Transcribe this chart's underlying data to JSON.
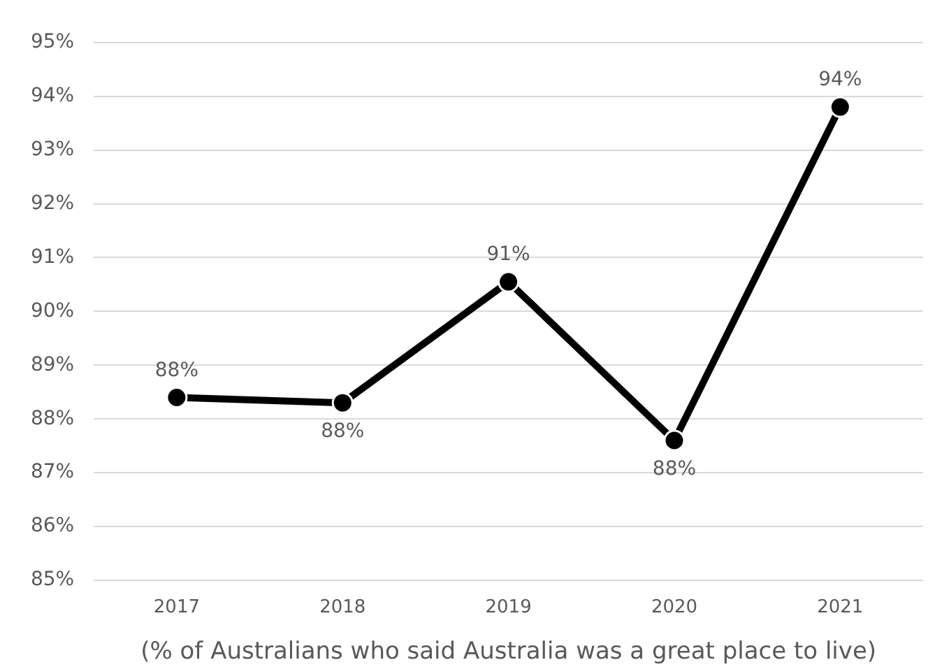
{
  "chart_data": {
    "type": "line",
    "xlabel": "(% of Australians who said Australia was a great place to live)",
    "categories": [
      "2017",
      "2018",
      "2019",
      "2020",
      "2021"
    ],
    "series": [
      {
        "color": "#000000",
        "values": [
          88.4,
          88.3,
          90.55,
          87.6,
          93.8
        ],
        "value_labels": [
          "88%",
          "88%",
          "91%",
          "88%",
          "94%"
        ]
      }
    ],
    "ylim": [
      85,
      95
    ],
    "yticks": [
      {
        "value": 85,
        "label": "85%"
      },
      {
        "value": 86,
        "label": "86%"
      },
      {
        "value": 87,
        "label": "87%"
      },
      {
        "value": 88,
        "label": "88%"
      },
      {
        "value": 89,
        "label": "89%"
      },
      {
        "value": 90,
        "label": "90%"
      },
      {
        "value": 91,
        "label": "91%"
      },
      {
        "value": 92,
        "label": "92%"
      },
      {
        "value": 93,
        "label": "93%"
      },
      {
        "value": 94,
        "label": "94%"
      },
      {
        "value": 95,
        "label": "95%"
      }
    ],
    "grid": "y",
    "legend": false,
    "marker": "circle",
    "line_style": "solid"
  }
}
